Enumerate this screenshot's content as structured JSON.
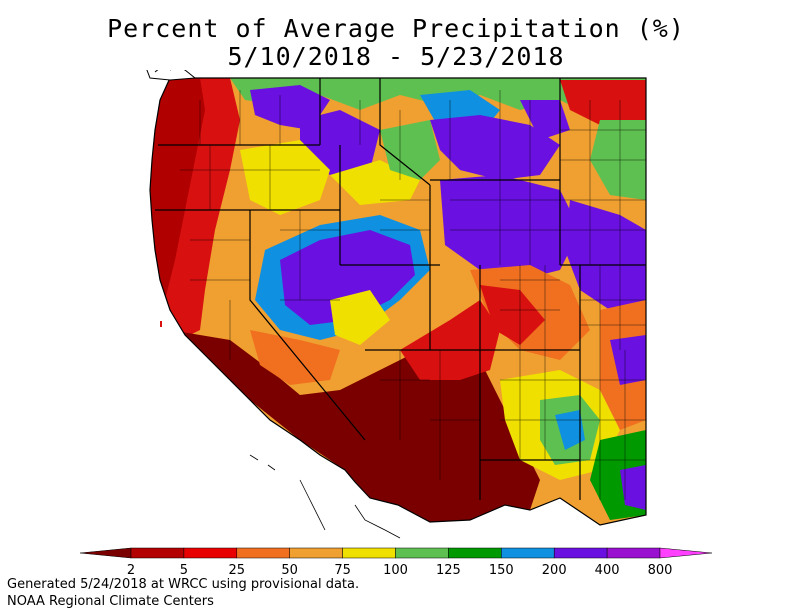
{
  "title": {
    "line1": "Percent of Average Precipitation (%)",
    "line2": "5/10/2018 - 5/23/2018"
  },
  "legend": {
    "ticks": [
      "2",
      "5",
      "25",
      "50",
      "75",
      "100",
      "125",
      "150",
      "200",
      "400",
      "800"
    ],
    "colors": [
      "#7a0000",
      "#b30000",
      "#e80000",
      "#f07020",
      "#f0a030",
      "#f0e000",
      "#5ec050",
      "#009900",
      "#1090e0",
      "#6a10e0",
      "#9a10d0",
      "#ff40ff"
    ]
  },
  "footer": {
    "line1": "Generated 5/24/2018 at WRCC using provisional data.",
    "line2": "NOAA Regional Climate Centers"
  },
  "map": {
    "region": "Western United States",
    "palette": {
      "dark_red": "#7a0000",
      "red": "#d81010",
      "orange": "#f07020",
      "light_orange": "#f0a030",
      "yellow": "#f0e000",
      "light_green": "#5ec050",
      "green": "#009900",
      "blue": "#1090e0",
      "purple": "#6a10e0",
      "violet": "#9a10d0"
    }
  }
}
